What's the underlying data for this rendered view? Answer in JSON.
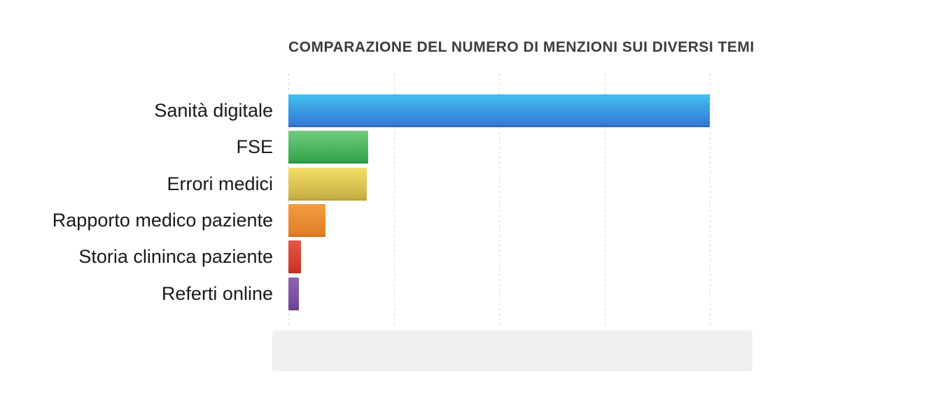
{
  "chart_data": {
    "type": "bar",
    "orientation": "horizontal",
    "title": "COMPARAZIONE DEL NUMERO DI MENZIONI SUI DIVERSI TEMI",
    "categories": [
      "Sanità digitale",
      "FSE",
      "Errori medici",
      "Rapporto medico paziente",
      "Storia clininca paziente",
      "Referti online"
    ],
    "values_pct_of_max": [
      100,
      18.9,
      18.6,
      8.8,
      3.0,
      2.5
    ],
    "xlabel": "",
    "ylabel": "",
    "axis_tick_labels_visible": false,
    "axis_range_pct": [
      0,
      100
    ],
    "gridlines": {
      "count": 5,
      "style": "dotted",
      "color": "#d6d6d6"
    },
    "legend_position": "none",
    "bar_colors": [
      {
        "name": "blue",
        "top": "#42c0f0",
        "bottom": "#3579d6",
        "edge": "#306cc4"
      },
      {
        "name": "green",
        "top": "#72cb7e",
        "bottom": "#33a54b",
        "edge": "#2e9844"
      },
      {
        "name": "yellow",
        "top": "#f3de65",
        "bottom": "#c6b044",
        "edge": "#baa43c"
      },
      {
        "name": "orange",
        "top": "#f39c42",
        "bottom": "#e07e24",
        "edge": "#d57620"
      },
      {
        "name": "red",
        "top": "#e75844",
        "bottom": "#ca3426",
        "edge": "#bf2f22"
      },
      {
        "name": "purple",
        "top": "#9163b3",
        "bottom": "#6f4597",
        "edge": "#653f8a"
      }
    ]
  },
  "footer_box": {
    "visible": true,
    "text": "",
    "color": "#f0f0f0"
  },
  "style_colors": {
    "title_text": "#3d3d3d",
    "label_text": "#1a1a1a",
    "background": "#ffffff"
  }
}
